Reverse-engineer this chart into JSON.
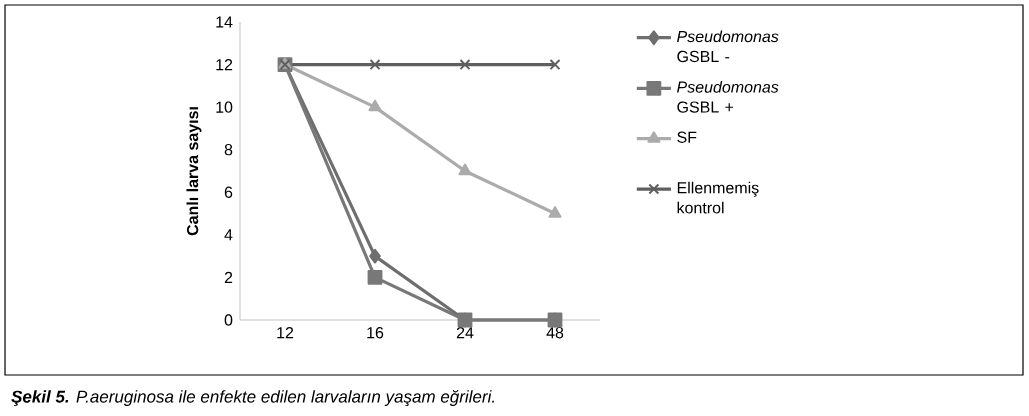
{
  "chart_data": {
    "type": "line",
    "ylabel": "Canlı larva sayısı",
    "categories": [
      "12",
      "16",
      "24",
      "48"
    ],
    "series": [
      {
        "name": "*Pseudomonas* GSBL -",
        "color": "#6e6e6e",
        "marker": "diamond",
        "values": [
          12,
          3,
          0,
          0
        ]
      },
      {
        "name": "*Pseudomonas* GSBL +",
        "color": "#787878",
        "marker": "square",
        "values": [
          12,
          2,
          0,
          0
        ]
      },
      {
        "name": "SF",
        "color": "#ababab",
        "marker": "triangle",
        "values": [
          12,
          10,
          7,
          5
        ]
      },
      {
        "name": "Ellenmemiş kontrol",
        "color": "#5f5f5f",
        "marker": "cross",
        "values": [
          12,
          12,
          12,
          12
        ]
      }
    ],
    "ylim": [
      0,
      14
    ],
    "yticks": [
      0,
      2,
      4,
      6,
      8,
      10,
      12,
      14
    ],
    "grid": false,
    "legend": "right",
    "line_style": "solid",
    "annotations": [
      "**Şekil 5.** P.aeruginosa ile enfekte edilen larvaların yaşam eğrileri."
    ]
  }
}
